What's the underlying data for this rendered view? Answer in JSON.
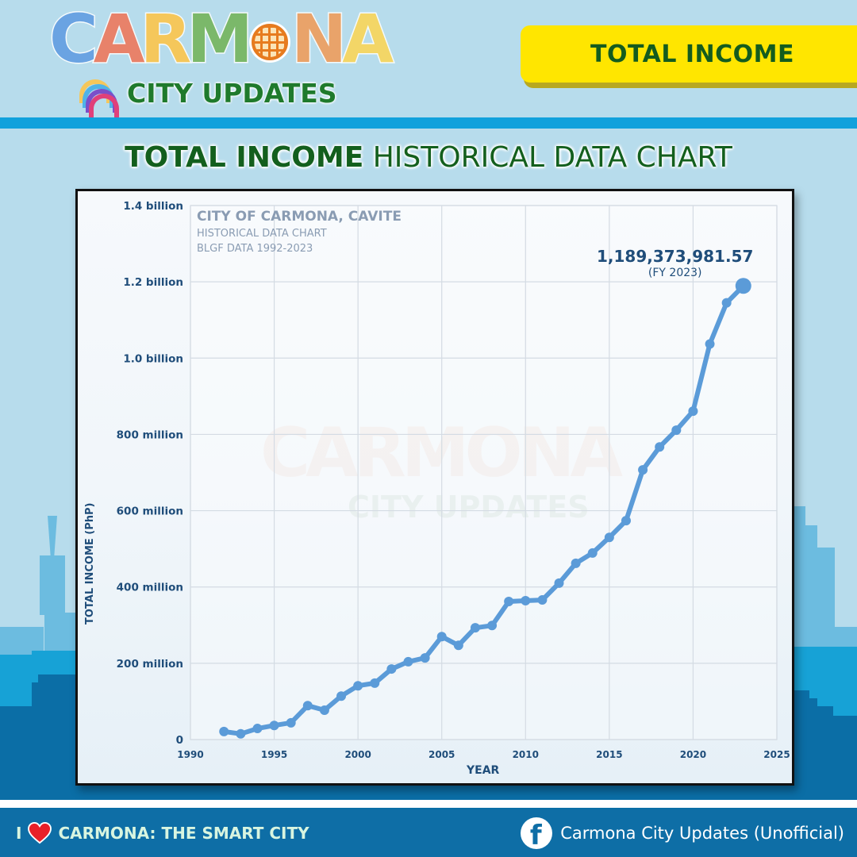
{
  "header": {
    "logo_letters": [
      "C",
      "A",
      "R",
      "M",
      "O",
      "N",
      "A"
    ],
    "logo_colors": [
      "#6aa3e2",
      "#e8826a",
      "#f5c75b",
      "#7bb86a",
      "#4fb3b0",
      "#e9a36a",
      "#f3d667"
    ],
    "logo_subtitle": "CITY UPDATES",
    "badge_label": "TOTAL INCOME"
  },
  "title": {
    "bold": "TOTAL INCOME",
    "rest": " HISTORICAL DATA CHART"
  },
  "chart": {
    "annotation_line1": "CITY OF CARMONA, CAVITE",
    "annotation_line2": "HISTORICAL DATA CHART",
    "annotation_line3": "BLGF DATA 1992-2023",
    "callout_value": "1,189,373,981.57",
    "callout_label": "(FY 2023)",
    "y_title": "TOTAL INCOME (PhP)",
    "x_title": "YEAR",
    "watermark_top": "CARMONA",
    "watermark_bottom": "CITY UPDATES",
    "line_color": "#5b9bd8",
    "label_color": "#1f4d7a"
  },
  "chart_data": {
    "type": "line",
    "title": "TOTAL INCOME HISTORICAL DATA CHART",
    "subtitle": "CITY OF CARMONA, CAVITE — HISTORICAL DATA CHART — BLGF DATA 1992-2023",
    "xlabel": "YEAR",
    "ylabel": "TOTAL INCOME (PhP)",
    "xlim": [
      1990,
      2025
    ],
    "ylim": [
      0,
      1400000000
    ],
    "x_ticks": [
      1990,
      1995,
      2000,
      2005,
      2010,
      2015,
      2020,
      2025
    ],
    "y_ticks": [
      0,
      200000000,
      400000000,
      600000000,
      800000000,
      1000000000,
      1200000000,
      1400000000
    ],
    "y_tick_labels": [
      "0",
      "200 million",
      "400 million",
      "600 million",
      "800 million",
      "1.0 billion",
      "1.2 billion",
      "1.4 billion"
    ],
    "grid": true,
    "legend": "none",
    "annotations": [
      {
        "x": 2023,
        "y": 1189373981.57,
        "text": "1,189,373,981.57 (FY 2023)"
      }
    ],
    "series": [
      {
        "name": "Total Income",
        "x": [
          1992,
          1993,
          1994,
          1995,
          1996,
          1997,
          1998,
          1999,
          2000,
          2001,
          2002,
          2003,
          2004,
          2005,
          2006,
          2007,
          2008,
          2009,
          2010,
          2011,
          2012,
          2013,
          2014,
          2015,
          2016,
          2017,
          2018,
          2019,
          2020,
          2021,
          2022,
          2023
        ],
        "values": [
          21000000,
          15000000,
          29000000,
          37000000,
          44000000,
          89000000,
          77000000,
          114000000,
          141000000,
          148000000,
          185000000,
          204000000,
          214000000,
          270000000,
          247000000,
          293000000,
          299000000,
          362000000,
          364000000,
          366000000,
          410000000,
          462000000,
          489000000,
          530000000,
          574000000,
          707000000,
          767000000,
          811000000,
          861000000,
          1037000000,
          1145000000,
          1189373981.57
        ]
      }
    ]
  },
  "footer": {
    "left_prefix": "I",
    "left_text": "CARMONA: THE SMART CITY",
    "right_text": "Carmona City Updates (Unofficial)",
    "facebook_glyph": "f"
  }
}
